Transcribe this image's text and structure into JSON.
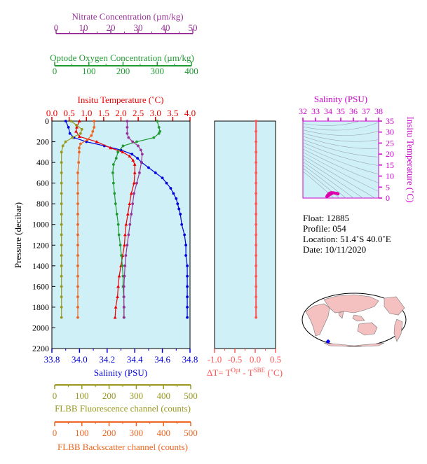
{
  "colors": {
    "nitrate": "#993399",
    "oxygen": "#229933",
    "temperature": "#ee0000",
    "salinity": "#0000dd",
    "fluorescence": "#999922",
    "backscatter": "#ee6622",
    "dt": "#ff5555",
    "panel_bg": "#cff0f7",
    "ts_marks": "#dd00aa",
    "land": "#f4c0c0",
    "ocean": "#ffffff"
  },
  "axes": {
    "nitrate": {
      "label": "Nitrate Concentration (µm/kg)",
      "range": [
        0,
        50
      ],
      "ticks": [
        "0",
        "10",
        "20",
        "30",
        "40",
        "50"
      ]
    },
    "oxygen": {
      "label": "Optode Oxygen Concentration (µm/kg)",
      "range": [
        0,
        400
      ],
      "ticks": [
        "0",
        "100",
        "200",
        "300",
        "400"
      ]
    },
    "temperature": {
      "label": "Insitu Temperature (˚C)",
      "range": [
        0,
        4
      ],
      "ticks": [
        "0.0",
        "0.5",
        "1.0",
        "1.5",
        "2.0",
        "2.5",
        "3.0",
        "3.5",
        "4.0"
      ]
    },
    "salinity": {
      "label": "Salinity (PSU)",
      "range": [
        33.8,
        34.8
      ],
      "ticks": [
        "33.8",
        "34.0",
        "34.2",
        "34.4",
        "34.6",
        "34.8"
      ]
    },
    "pressure": {
      "label": "Pressure (decibar)",
      "range": [
        0,
        2200
      ],
      "ticks": [
        "0",
        "200",
        "400",
        "600",
        "800",
        "1000",
        "1200",
        "1400",
        "1600",
        "1800",
        "2000",
        "2200"
      ]
    },
    "fluorescence": {
      "label": "FLBB Fluorescence channel (counts)",
      "range": [
        0,
        500
      ],
      "ticks": [
        "0",
        "100",
        "200",
        "300",
        "400",
        "500"
      ]
    },
    "backscatter": {
      "label": "FLBB Backscatter channel (counts)",
      "range": [
        0,
        500
      ],
      "ticks": [
        "0",
        "100",
        "200",
        "300",
        "400",
        "500"
      ]
    },
    "dt": {
      "label_main": "ΔT= T",
      "sup1": "Opt",
      "label_mid": " - T",
      "sup2": "SBE",
      "label_unit": " (˚C)",
      "range": [
        -1.0,
        0.5
      ],
      "ticks": [
        "-1.0",
        "-0.5",
        "0.0",
        "0.5"
      ]
    },
    "ts_salinity": {
      "label": "Salinity (PSU)",
      "range": [
        32,
        38
      ],
      "ticks": [
        "32",
        "33",
        "34",
        "35",
        "36",
        "37",
        "38"
      ]
    },
    "ts_temperature": {
      "label": "Insitu Temperature (˚C)",
      "range": [
        0,
        35
      ],
      "ticks": [
        "0",
        "5",
        "10",
        "15",
        "20",
        "25",
        "30",
        "35"
      ]
    }
  },
  "info": {
    "float": "Float:  12885",
    "profile": "Profile:  054",
    "location": "Location:  51.4˚S  40.0˚E",
    "date": "Date:  10/11/2020"
  },
  "chart_data": {
    "type": "line",
    "y_variable": "pressure",
    "y_range": [
      0,
      2200
    ],
    "series": [
      {
        "name": "Salinity (PSU)",
        "axis": "salinity",
        "marker": "circle",
        "points": [
          [
            33.9,
            0
          ],
          [
            33.92,
            60
          ],
          [
            33.93,
            120
          ],
          [
            33.96,
            160
          ],
          [
            34.05,
            200
          ],
          [
            34.18,
            240
          ],
          [
            34.3,
            280
          ],
          [
            34.38,
            320
          ],
          [
            34.42,
            360
          ],
          [
            34.45,
            400
          ],
          [
            34.5,
            450
          ],
          [
            34.55,
            500
          ],
          [
            34.6,
            550
          ],
          [
            34.63,
            600
          ],
          [
            34.66,
            650
          ],
          [
            34.68,
            700
          ],
          [
            34.7,
            750
          ],
          [
            34.71,
            800
          ],
          [
            34.72,
            850
          ],
          [
            34.73,
            900
          ],
          [
            34.74,
            1000
          ],
          [
            34.76,
            1100
          ],
          [
            34.77,
            1200
          ],
          [
            34.77,
            1300
          ],
          [
            34.78,
            1400
          ],
          [
            34.78,
            1500
          ],
          [
            34.78,
            1600
          ],
          [
            34.78,
            1700
          ],
          [
            34.78,
            1800
          ],
          [
            34.78,
            1900
          ]
        ]
      },
      {
        "name": "Insitu Temperature (˚C)",
        "axis": "temperature",
        "marker": "triangle",
        "points": [
          [
            0.8,
            0
          ],
          [
            0.72,
            60
          ],
          [
            0.7,
            100
          ],
          [
            0.8,
            150
          ],
          [
            1.3,
            200
          ],
          [
            1.7,
            260
          ],
          [
            2.05,
            300
          ],
          [
            2.25,
            340
          ],
          [
            2.35,
            380
          ],
          [
            2.4,
            420
          ],
          [
            2.4,
            500
          ],
          [
            2.38,
            600
          ],
          [
            2.3,
            700
          ],
          [
            2.25,
            800
          ],
          [
            2.2,
            900
          ],
          [
            2.15,
            1000
          ],
          [
            2.12,
            1100
          ],
          [
            2.1,
            1200
          ],
          [
            2.05,
            1300
          ],
          [
            2.0,
            1400
          ],
          [
            1.95,
            1500
          ],
          [
            1.92,
            1600
          ],
          [
            1.9,
            1700
          ],
          [
            1.85,
            1800
          ],
          [
            1.83,
            1900
          ]
        ]
      },
      {
        "name": "Optode Oxygen Concentration (µm/kg)",
        "axis": "oxygen",
        "marker": "circle",
        "points": [
          [
            300,
            0
          ],
          [
            305,
            60
          ],
          [
            308,
            100
          ],
          [
            305,
            120
          ],
          [
            290,
            160
          ],
          [
            240,
            200
          ],
          [
            200,
            240
          ],
          [
            185,
            300
          ],
          [
            180,
            360
          ],
          [
            172,
            420
          ],
          [
            170,
            500
          ],
          [
            172,
            600
          ],
          [
            175,
            700
          ],
          [
            178,
            800
          ],
          [
            182,
            900
          ],
          [
            186,
            1000
          ],
          [
            188,
            1100
          ],
          [
            192,
            1200
          ],
          [
            195,
            1300
          ],
          [
            198,
            1400
          ],
          [
            200,
            1500
          ],
          [
            200,
            1600
          ],
          [
            202,
            1700
          ],
          [
            203,
            1800
          ],
          [
            203,
            1900
          ]
        ]
      },
      {
        "name": "Nitrate Concentration (µm/kg)",
        "axis": "nitrate",
        "marker": "circle",
        "points": [
          [
            26,
            0
          ],
          [
            26,
            60
          ],
          [
            26,
            120
          ],
          [
            26.5,
            160
          ],
          [
            28,
            200
          ],
          [
            30,
            240
          ],
          [
            31,
            280
          ],
          [
            31.5,
            320
          ],
          [
            31.2,
            400
          ],
          [
            30.5,
            500
          ],
          [
            29.5,
            600
          ],
          [
            28.5,
            700
          ],
          [
            28,
            800
          ],
          [
            27.5,
            900
          ],
          [
            27,
            1000
          ],
          [
            26.5,
            1100
          ],
          [
            26,
            1200
          ],
          [
            25.5,
            1300
          ],
          [
            25.2,
            1400
          ],
          [
            25,
            1500
          ],
          [
            24.8,
            1600
          ],
          [
            24.8,
            1700
          ],
          [
            24.8,
            1800
          ],
          [
            24.8,
            1900
          ]
        ]
      },
      {
        "name": "FLBB Fluorescence channel (counts)",
        "axis": "fluorescence",
        "marker": "circle",
        "points": [
          [
            60,
            0
          ],
          [
            80,
            40
          ],
          [
            100,
            80
          ],
          [
            95,
            120
          ],
          [
            65,
            160
          ],
          [
            40,
            200
          ],
          [
            30,
            240
          ],
          [
            25,
            300
          ],
          [
            25,
            400
          ],
          [
            25,
            500
          ],
          [
            25,
            600
          ],
          [
            25,
            700
          ],
          [
            25,
            800
          ],
          [
            25,
            900
          ],
          [
            25,
            1000
          ],
          [
            25,
            1100
          ],
          [
            25,
            1200
          ],
          [
            25,
            1300
          ],
          [
            25,
            1400
          ],
          [
            25,
            1500
          ],
          [
            25,
            1600
          ],
          [
            25,
            1700
          ],
          [
            25,
            1800
          ],
          [
            25,
            1900
          ]
        ]
      },
      {
        "name": "FLBB Backscatter channel (counts)",
        "axis": "backscatter",
        "marker": "circle",
        "points": [
          [
            145,
            0
          ],
          [
            145,
            60
          ],
          [
            140,
            100
          ],
          [
            135,
            140
          ],
          [
            120,
            180
          ],
          [
            95,
            220
          ],
          [
            90,
            260
          ],
          [
            90,
            300
          ],
          [
            88,
            400
          ],
          [
            85,
            500
          ],
          [
            85,
            600
          ],
          [
            85,
            700
          ],
          [
            85,
            800
          ],
          [
            85,
            900
          ],
          [
            85,
            1000
          ],
          [
            85,
            1100
          ],
          [
            85,
            1200
          ],
          [
            85,
            1300
          ],
          [
            85,
            1400
          ],
          [
            85,
            1500
          ],
          [
            85,
            1600
          ],
          [
            85,
            1700
          ],
          [
            85,
            1800
          ],
          [
            85,
            1900
          ]
        ]
      },
      {
        "name": "ΔT",
        "axis": "dt",
        "marker": "circle",
        "points": [
          [
            0.02,
            0
          ],
          [
            0.02,
            100
          ],
          [
            0.02,
            200
          ],
          [
            0.02,
            300
          ],
          [
            0.02,
            400
          ],
          [
            0.02,
            500
          ],
          [
            0.02,
            600
          ],
          [
            0.02,
            700
          ],
          [
            0.02,
            800
          ],
          [
            0.02,
            900
          ],
          [
            0.02,
            1000
          ],
          [
            0.02,
            1100
          ],
          [
            0.02,
            1200
          ],
          [
            0.02,
            1300
          ],
          [
            0.02,
            1400
          ],
          [
            0.02,
            1500
          ],
          [
            0.02,
            1600
          ],
          [
            0.02,
            1700
          ],
          [
            0.02,
            1800
          ],
          [
            0.02,
            1900
          ]
        ]
      }
    ],
    "ts_points": [
      [
        33.9,
        0.7
      ],
      [
        34.0,
        1.0
      ],
      [
        34.1,
        1.4
      ],
      [
        34.2,
        1.8
      ],
      [
        34.3,
        2.1
      ],
      [
        34.4,
        2.4
      ],
      [
        34.5,
        2.3
      ],
      [
        34.6,
        2.2
      ],
      [
        34.7,
        2.1
      ],
      [
        34.75,
        2.0
      ],
      [
        34.78,
        1.9
      ],
      [
        33.95,
        1.2
      ],
      [
        34.05,
        2.0
      ],
      [
        34.15,
        2.3
      ],
      [
        34.25,
        2.5
      ]
    ],
    "grid": false,
    "legend": "none"
  }
}
